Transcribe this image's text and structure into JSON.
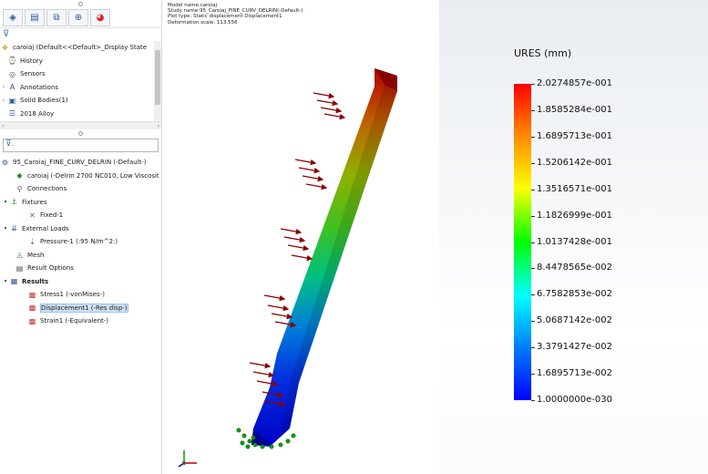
{
  "feature_tree": {
    "part_name": "caroiaj  (Default<<Default>_Display State",
    "part_items": [
      "History",
      "Sensors",
      "Annotations",
      "Solid Bodies(1)",
      "2018 Alloy"
    ],
    "study_name": "95_Caroiaj_FINE_CURV_DELRIN (-Default-)",
    "study_items": {
      "material": "caroiaj (-Delrin 2700 NC010, Low Viscosit",
      "connections": "Connections",
      "fixtures": "Fixtures",
      "fixture_item": "Fixed-1",
      "external_loads": "External Loads",
      "load_item": "Pressure-1 (:95 N/m^2:)",
      "mesh": "Mesh",
      "result_options": "Result Options",
      "results": "Results",
      "result_items": [
        "Stress1 (-vonMises-)",
        "Displacement1 (-Res disp-)",
        "Strain1 (-Equivalent-)"
      ]
    }
  },
  "viewport": {
    "info_lines": [
      "Model name:caroiaj",
      "Study name:95_Caroiaj_FINE_CURV_DELRIN(-Default-)",
      "Plot type: Static displacement Displacement1",
      "Deformation scale: 113.556"
    ]
  },
  "legend": {
    "title": "URES (mm)",
    "values": [
      "2.0274857e-001",
      "1.8585284e-001",
      "1.6895713e-001",
      "1.5206142e-001",
      "1.3516571e-001",
      "1.1826999e-001",
      "1.0137428e-001",
      "8.4478565e-002",
      "6.7582853e-002",
      "5.0687142e-002",
      "3.3791427e-002",
      "1.6895713e-002",
      "1.0000000e-030"
    ]
  },
  "colors": {
    "accent": "#2b5797",
    "selection": "#cfe2f7",
    "load_arrow": "#8b0000",
    "fixture": "#00a000"
  }
}
